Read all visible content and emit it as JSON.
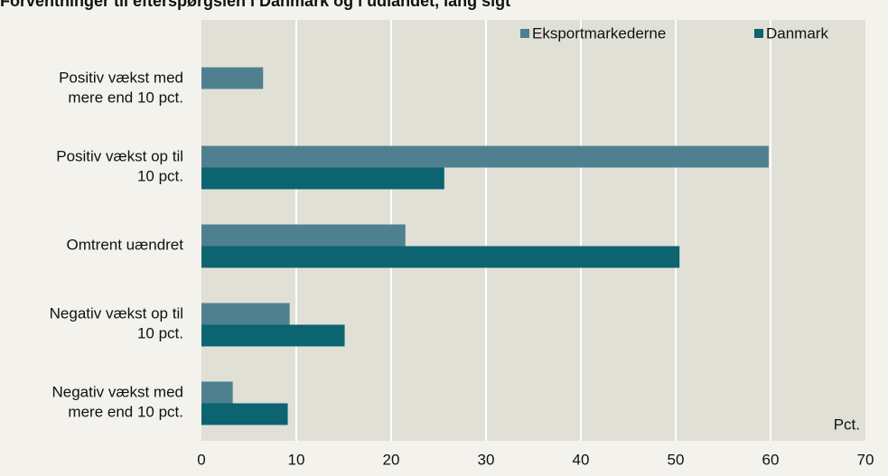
{
  "chart_data": {
    "type": "hbar",
    "title": "Forventninger til efterspørgslen i Danmark og i udlandet, lang sigt",
    "categories": [
      "Positiv vækst med\nmere end 10 pct.",
      "Positiv vækst op til\n10 pct.",
      "Omtrent uændret",
      "Negativ vækst op til\n10 pct.",
      "Negativ vækst med\nmere end 10 pct."
    ],
    "series": [
      {
        "name": "Eksportmarkederne",
        "color": "#4f8090",
        "values": [
          6.5,
          59.8,
          21.5,
          9.3,
          3.3
        ]
      },
      {
        "name": "Danmark",
        "color": "#0b6470",
        "values": [
          0,
          25.6,
          50.4,
          15.1,
          9.1
        ]
      }
    ],
    "xlim": [
      0,
      70
    ],
    "xticks": [
      0,
      10,
      20,
      30,
      40,
      50,
      60,
      70
    ],
    "xlabel": "Pct.",
    "grid": true,
    "legend": "top-right"
  }
}
